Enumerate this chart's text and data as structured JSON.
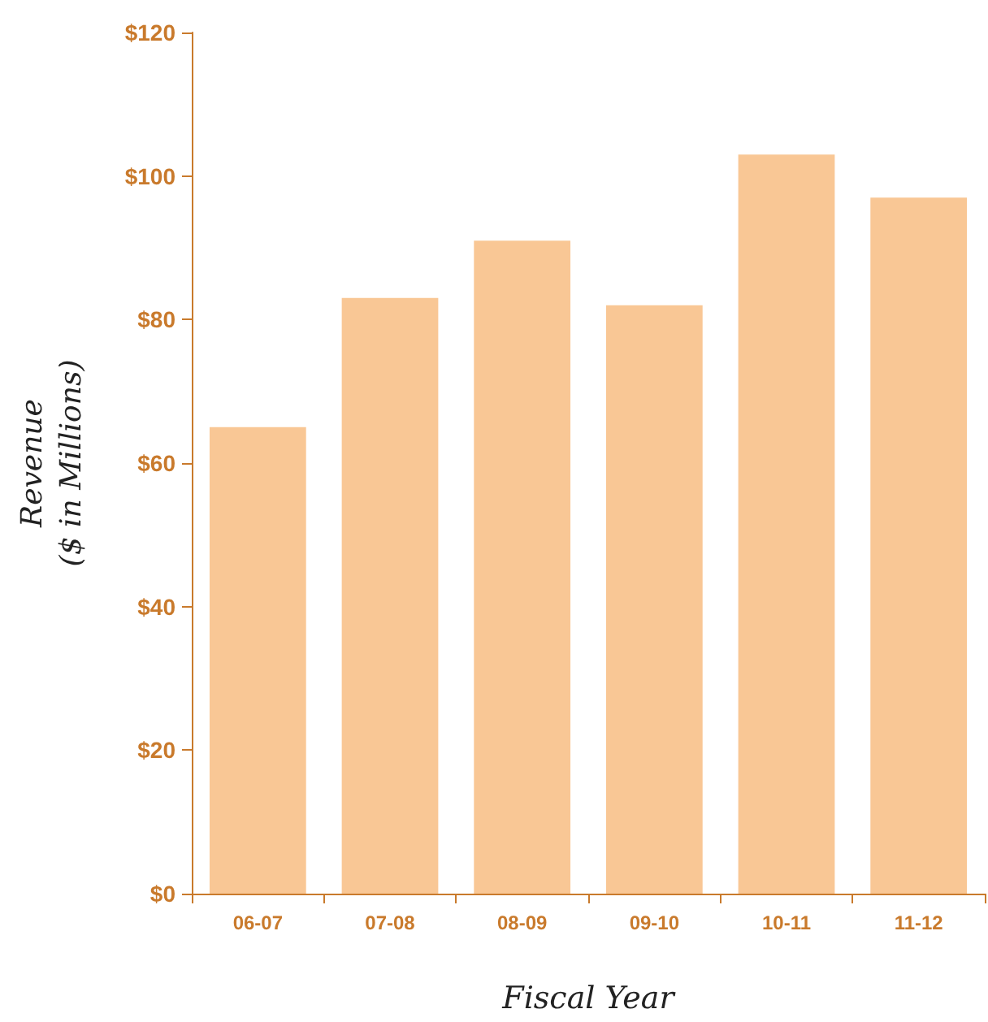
{
  "chart_data": {
    "type": "bar",
    "xlabel": "Fiscal Year",
    "ylabel": "Revenue\n($ in Millions)",
    "categories": [
      "06-07",
      "07-08",
      "08-09",
      "09-10",
      "10-11",
      "11-12"
    ],
    "values": [
      65,
      83,
      91,
      82,
      103,
      97
    ],
    "color": "#f9c795",
    "ylim": [
      0,
      120
    ],
    "yticks": [
      {
        "value": 0,
        "label": "$0"
      },
      {
        "value": 20,
        "label": "$20"
      },
      {
        "value": 40,
        "label": "$40"
      },
      {
        "value": 60,
        "label": "$60"
      },
      {
        "value": 80,
        "label": "$80"
      },
      {
        "value": 100,
        "label": "$100"
      },
      {
        "value": 120,
        "label": "$120"
      }
    ],
    "grid": false
  }
}
